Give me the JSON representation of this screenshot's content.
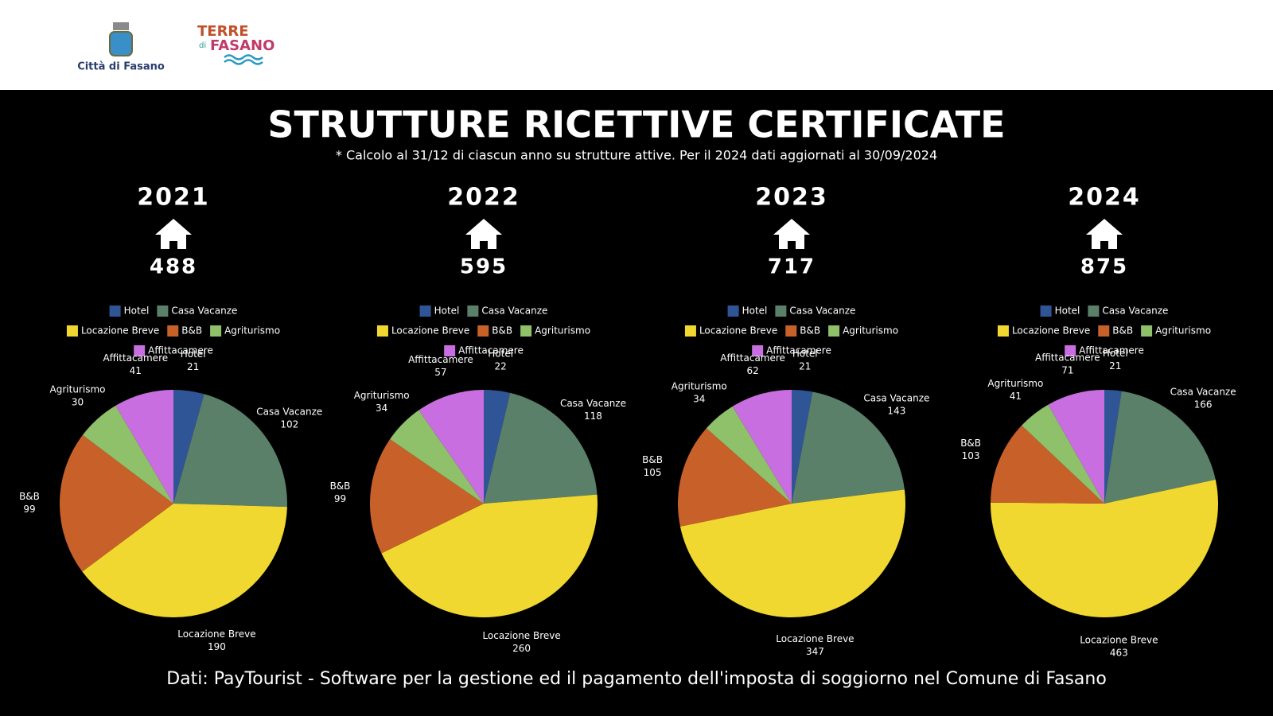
{
  "header": {
    "logo_left": "Città di Fasano",
    "logo_right_top": "TERRE",
    "logo_right_small": "di",
    "logo_right_main": "FASANO"
  },
  "title": "STRUTTURE RICETTIVE CERTIFICATE",
  "subtitle": "* Calcolo al 31/12 di ciascun anno su strutture attive. Per il 2024 dati aggiornati al 30/09/2024",
  "footer": "Dati: PayTourist - Software per la gestione ed il pagamento dell'imposta di soggiorno nel Comune di Fasano",
  "chart_data": [
    {
      "type": "pie",
      "title": "2021",
      "total": 488,
      "categories": [
        "Hotel",
        "Casa Vacanze",
        "Locazione Breve",
        "B&B",
        "Agriturismo",
        "Affittacamere"
      ],
      "values": [
        21,
        102,
        190,
        99,
        30,
        41
      ],
      "colors": [
        "#2f5597",
        "#5a806a",
        "#f0d830",
        "#c8602a",
        "#8fc06a",
        "#c86ee0"
      ]
    },
    {
      "type": "pie",
      "title": "2022",
      "total": 595,
      "categories": [
        "Hotel",
        "Casa Vacanze",
        "Locazione Breve",
        "B&B",
        "Agriturismo",
        "Affittacamere"
      ],
      "values": [
        22,
        118,
        260,
        99,
        34,
        57
      ],
      "colors": [
        "#2f5597",
        "#5a806a",
        "#f0d830",
        "#c8602a",
        "#8fc06a",
        "#c86ee0"
      ]
    },
    {
      "type": "pie",
      "title": "2023",
      "total": 717,
      "categories": [
        "Hotel",
        "Casa Vacanze",
        "Locazione Breve",
        "B&B",
        "Agriturismo",
        "Affittacamere"
      ],
      "values": [
        21,
        143,
        347,
        105,
        34,
        62
      ],
      "colors": [
        "#2f5597",
        "#5a806a",
        "#f0d830",
        "#c8602a",
        "#8fc06a",
        "#c86ee0"
      ]
    },
    {
      "type": "pie",
      "title": "2024",
      "total": 875,
      "categories": [
        "Hotel",
        "Casa Vacanze",
        "Locazione Breve",
        "B&B",
        "Agriturismo",
        "Affittacamere"
      ],
      "values": [
        21,
        166,
        463,
        103,
        41,
        71
      ],
      "colors": [
        "#2f5597",
        "#5a806a",
        "#f0d830",
        "#c8602a",
        "#8fc06a",
        "#c86ee0"
      ]
    }
  ]
}
